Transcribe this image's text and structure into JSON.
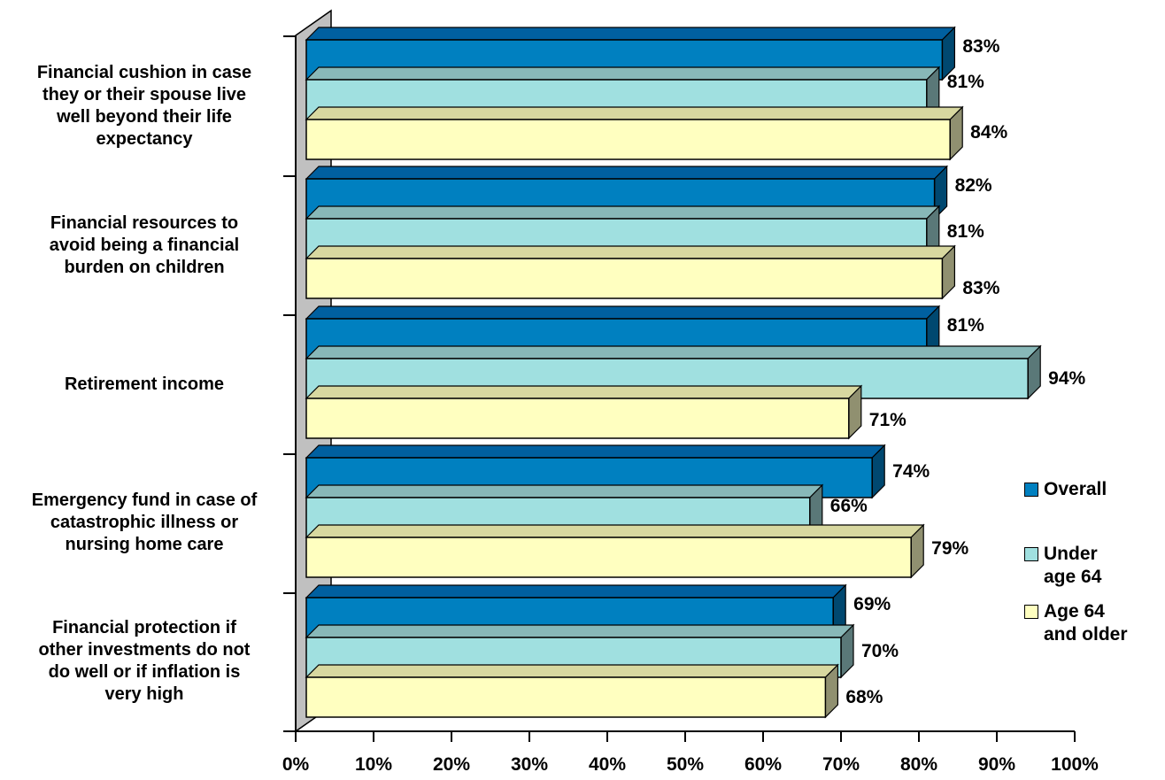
{
  "chart_data": {
    "type": "bar",
    "orientation": "horizontal",
    "categories": [
      "Financial cushion in case they or their spouse live well beyond their life expectancy",
      "Financial resources to avoid being a financial burden on children",
      "Retirement income",
      "Emergency fund in case of catastrophic illness or nursing home care",
      "Financial protection if other investments do not do well or if inflation is very high"
    ],
    "category_lines": [
      [
        "Financial cushion in case",
        "they or their spouse live",
        "well beyond their life",
        "expectancy"
      ],
      [
        "Financial resources to",
        "avoid being a financial",
        "burden on children"
      ],
      [
        "Retirement income"
      ],
      [
        "Emergency fund in case of",
        "catastrophic illness or",
        "nursing home care"
      ],
      [
        "Financial protection if",
        "other investments do not",
        "do well or if inflation is",
        "very high"
      ]
    ],
    "series": [
      {
        "name": "Overall",
        "color": "#0080C0",
        "values": [
          83,
          82,
          81,
          74,
          69
        ],
        "labels": [
          "83%",
          "82%",
          "81%",
          "74%",
          "69%"
        ]
      },
      {
        "name": "Under age 64",
        "color": "#A0E0E0",
        "values": [
          81,
          81,
          94,
          66,
          70
        ],
        "labels": [
          "81%",
          "81%",
          "94%",
          "66%",
          "70%"
        ]
      },
      {
        "name": "Age 64 and older",
        "color": "#FFFFC0",
        "values": [
          84,
          83,
          71,
          79,
          68
        ],
        "labels": [
          "84%",
          "83%",
          "71%",
          "79%",
          "68%"
        ]
      }
    ],
    "legend": {
      "placement": "right",
      "entries": [
        "Overall",
        "Under\nage 64",
        "Age 64\nand older"
      ]
    },
    "xlim": [
      0,
      100
    ],
    "x_ticks": [
      "0%",
      "10%",
      "20%",
      "30%",
      "40%",
      "50%",
      "60%",
      "70%",
      "80%",
      "90%",
      "100%"
    ],
    "title": "",
    "xlabel": "",
    "ylabel": "",
    "grid": false
  }
}
